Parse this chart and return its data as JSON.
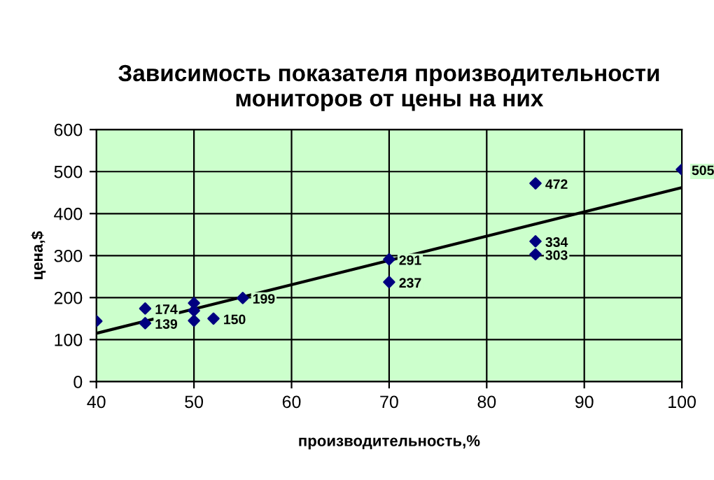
{
  "chart_data": {
    "type": "scatter",
    "title": "Зависимость показателя производительности\nмониторов от цены на них",
    "xlabel": "производительность,%",
    "ylabel": "цена,$",
    "xlim": [
      40,
      100
    ],
    "ylim": [
      0,
      600
    ],
    "xticks": [
      40,
      50,
      60,
      70,
      80,
      90,
      100
    ],
    "yticks": [
      0,
      100,
      200,
      300,
      400,
      500,
      600
    ],
    "grid": true,
    "series": [
      {
        "color": "#000080",
        "marker": "diamond",
        "x": [
          40,
          45,
          45,
          50,
          50,
          50,
          52,
          55,
          70,
          70,
          85,
          85,
          85,
          100
        ],
        "values": [
          144,
          139,
          174,
          187,
          169,
          145,
          150,
          199,
          291,
          237,
          472,
          334,
          303,
          505
        ],
        "value_labels": [
          null,
          "139",
          "174",
          null,
          null,
          null,
          "150",
          "199",
          "291",
          "237",
          "472",
          "334",
          "303",
          "505"
        ]
      },
      {
        "type": "line",
        "color": "#000000",
        "x": [
          40,
          100
        ],
        "values": [
          115,
          462
        ]
      }
    ]
  }
}
